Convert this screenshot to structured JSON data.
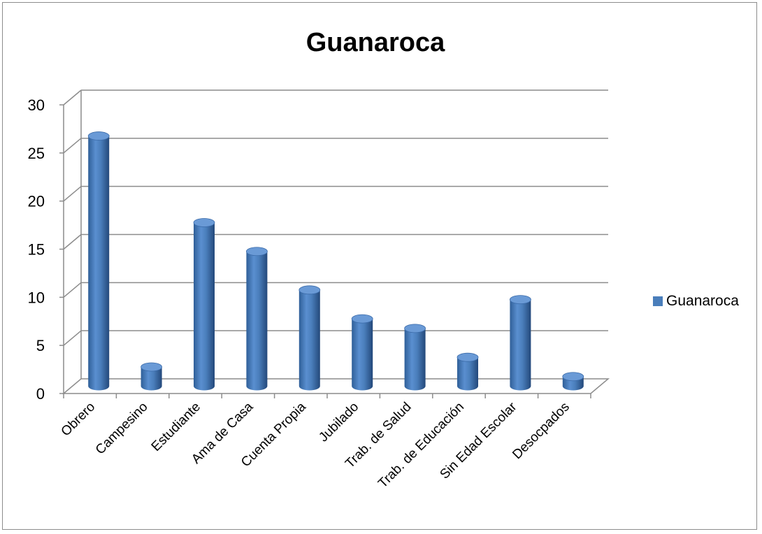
{
  "chart_data": {
    "type": "bar",
    "title": "Guanaroca",
    "xlabel": "",
    "ylabel": "",
    "categories": [
      "Obrero",
      "Campesino",
      "Estudiante",
      "Ama de Casa",
      "Cuenta Propia",
      "Jubilado",
      "Trab. de Salud",
      "Trab. de Educación",
      "Sin Edad Escolar",
      "Desocpados"
    ],
    "series": [
      {
        "name": "Guanaroca",
        "values": [
          26,
          2,
          17,
          14,
          10,
          7,
          6,
          3,
          9,
          1
        ],
        "color": "#4a7ebb"
      }
    ],
    "ylim": [
      0,
      30
    ],
    "yticks": [
      "0",
      "5",
      "10",
      "15",
      "20",
      "25",
      "30"
    ],
    "grid": true,
    "legend_position": "right",
    "style": "3d-cylinder"
  }
}
